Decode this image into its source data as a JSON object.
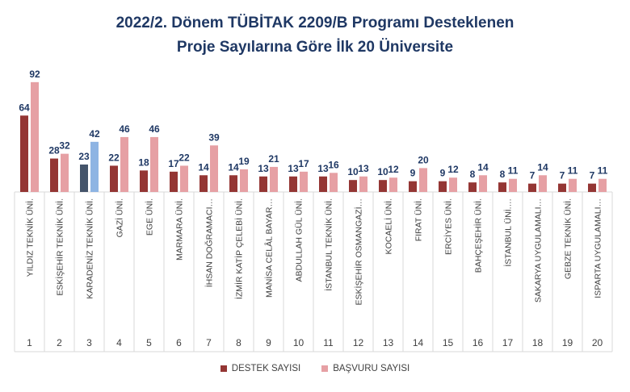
{
  "chart_data": {
    "type": "bar",
    "title_line1": "2022/2. Dönem TÜBİTAK 2209/B Programı Desteklenen",
    "title_line2": "Proje Sayılarına Göre İlk 20 Üniversite",
    "ranks": [
      "1",
      "2",
      "3",
      "4",
      "5",
      "6",
      "7",
      "8",
      "9",
      "10",
      "11",
      "12",
      "13",
      "14",
      "15",
      "16",
      "17",
      "18",
      "19",
      "20"
    ],
    "categories": [
      "YILDIZ TEKNİK ÜNİ.",
      "ESKİŞEHİR TEKNİK ÜNİ.",
      "KARADENİZ TEKNİK ÜNİ.",
      "GAZİ ÜNİ.",
      "EGE ÜNİ.",
      "MARMARA ÜNİ.",
      "İHSAN DOĞRAMACI…",
      "İZMİR KATİP ÇELEBİ ÜNİ.",
      "MANİSA CELÂL BAYAR…",
      "ABDULLAH GÜL ÜNİ.",
      "İSTANBUL TEKNİK ÜNİ.",
      "ESKİŞEHİR OSMANGAZİ…",
      "KOCAELİ ÜNİ.",
      "FIRAT ÜNİ.",
      "ERCİYES ÜNİ.",
      "BAHÇEŞEHİR ÜNİ.",
      "İSTANBUL ÜNİ.…",
      "SAKARYA UYGULAMALI…",
      "GEBZE TEKNİK ÜNİ.",
      "ISPARTA UYGULAMALI…"
    ],
    "series": [
      {
        "name": "DESTEK SAYISI",
        "color": "#943634",
        "values": [
          64,
          28,
          23,
          22,
          18,
          17,
          14,
          14,
          13,
          13,
          13,
          10,
          10,
          9,
          9,
          8,
          8,
          7,
          7,
          7
        ]
      },
      {
        "name": "BAŞVURU SAYISI",
        "color": "#e6a0a4",
        "values": [
          92,
          32,
          42,
          46,
          46,
          22,
          39,
          19,
          21,
          17,
          16,
          13,
          12,
          20,
          12,
          14,
          11,
          14,
          11,
          11
        ]
      }
    ],
    "highlight": {
      "index": 2,
      "colors": [
        "#44546a",
        "#8eb4e3"
      ]
    },
    "ylim": [
      0,
      100
    ],
    "grid": true,
    "legend_position": "bottom"
  }
}
